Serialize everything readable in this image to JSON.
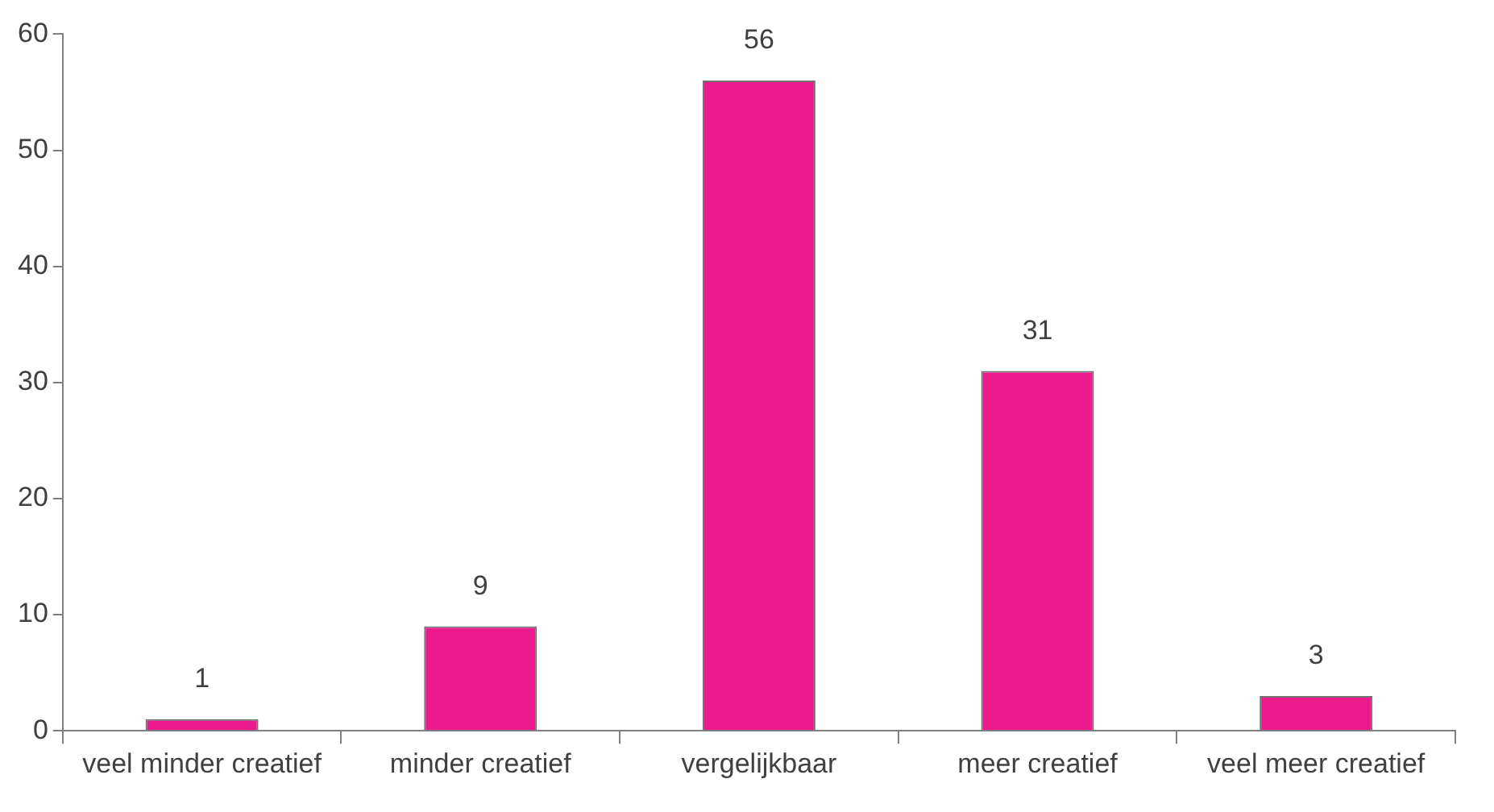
{
  "chart_data": {
    "type": "bar",
    "categories": [
      "veel minder creatief",
      "minder creatief",
      "vergelijkbaar",
      "meer creatief",
      "veel meer creatief"
    ],
    "values": [
      1,
      9,
      56,
      31,
      3
    ],
    "color": "#ec1a8c",
    "ylim": [
      0,
      60
    ],
    "yticks": [
      0,
      10,
      20,
      30,
      40,
      50,
      60
    ],
    "grid": false,
    "legend": false,
    "data_labels": true
  }
}
